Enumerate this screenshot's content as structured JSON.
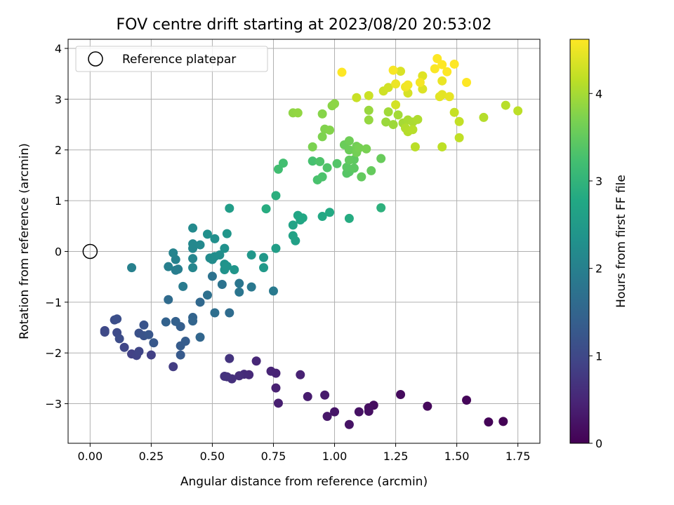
{
  "chart_data": {
    "type": "scatter",
    "title": "FOV centre drift starting at 2023/08/20 20:53:02",
    "xlabel": "Angular distance from reference (arcmin)",
    "ylabel": "Rotation from reference (arcmin)",
    "xlim": [
      -0.09,
      1.84
    ],
    "ylim": [
      -3.78,
      4.18
    ],
    "xticks": [
      0,
      0.25,
      0.5,
      0.75,
      1.0,
      1.25,
      1.5,
      1.75
    ],
    "xtick_labels": [
      "0.00",
      "0.25",
      "0.50",
      "0.75",
      "1.00",
      "1.25",
      "1.50",
      "1.75"
    ],
    "yticks": [
      -3,
      -2,
      -1,
      0,
      1,
      2,
      3,
      4
    ],
    "ytick_labels": [
      "−3",
      "−2",
      "−1",
      "0",
      "1",
      "2",
      "3",
      "4"
    ],
    "grid": true,
    "legend": {
      "location": "upper-left",
      "entries": [
        {
          "label": "Reference platepar",
          "marker": "open-circle"
        }
      ]
    },
    "reference_point": {
      "x": 0.0,
      "y": 0.0
    },
    "colorbar": {
      "label": "Hours from first FF file",
      "colormap": "viridis",
      "range": [
        0,
        4.62
      ],
      "ticks": [
        0,
        1,
        2,
        3,
        4
      ],
      "tick_labels": [
        "0",
        "1",
        "2",
        "3",
        "4"
      ]
    },
    "points": [
      {
        "x": 1.69,
        "y": -3.35,
        "c": 0.02
      },
      {
        "x": 1.63,
        "y": -3.36,
        "c": 0.04
      },
      {
        "x": 1.54,
        "y": -2.93,
        "c": 0.07
      },
      {
        "x": 1.38,
        "y": -3.05,
        "c": 0.1
      },
      {
        "x": 1.27,
        "y": -2.82,
        "c": 0.13
      },
      {
        "x": 1.16,
        "y": -3.03,
        "c": 0.16
      },
      {
        "x": 1.14,
        "y": -3.08,
        "c": 0.18
      },
      {
        "x": 1.14,
        "y": -3.15,
        "c": 0.2
      },
      {
        "x": 1.1,
        "y": -3.16,
        "c": 0.22
      },
      {
        "x": 1.06,
        "y": -3.41,
        "c": 0.24
      },
      {
        "x": 1.0,
        "y": -3.16,
        "c": 0.27
      },
      {
        "x": 0.97,
        "y": -3.25,
        "c": 0.3
      },
      {
        "x": 0.96,
        "y": -2.83,
        "c": 0.33
      },
      {
        "x": 0.89,
        "y": -2.86,
        "c": 0.36
      },
      {
        "x": 0.77,
        "y": -2.99,
        "c": 0.39
      },
      {
        "x": 0.76,
        "y": -2.69,
        "c": 0.42
      },
      {
        "x": 0.86,
        "y": -2.43,
        "c": 0.44
      },
      {
        "x": 0.76,
        "y": -2.4,
        "c": 0.46
      },
      {
        "x": 0.74,
        "y": -2.36,
        "c": 0.48
      },
      {
        "x": 0.68,
        "y": -2.16,
        "c": 0.51
      },
      {
        "x": 0.65,
        "y": -2.43,
        "c": 0.54
      },
      {
        "x": 0.63,
        "y": -2.42,
        "c": 0.57
      },
      {
        "x": 0.61,
        "y": -2.45,
        "c": 0.6
      },
      {
        "x": 0.58,
        "y": -2.51,
        "c": 0.63
      },
      {
        "x": 0.56,
        "y": -2.47,
        "c": 0.66
      },
      {
        "x": 0.55,
        "y": -2.46,
        "c": 0.68
      },
      {
        "x": 0.57,
        "y": -2.11,
        "c": 0.7
      },
      {
        "x": 0.34,
        "y": -2.27,
        "c": 0.82
      },
      {
        "x": 0.25,
        "y": -2.04,
        "c": 0.86
      },
      {
        "x": 0.17,
        "y": -2.02,
        "c": 0.89
      },
      {
        "x": 0.19,
        "y": -2.05,
        "c": 0.92
      },
      {
        "x": 0.2,
        "y": -1.97,
        "c": 0.95
      },
      {
        "x": 0.14,
        "y": -1.89,
        "c": 0.98
      },
      {
        "x": 0.06,
        "y": -1.56,
        "c": 1.0
      },
      {
        "x": 0.06,
        "y": -1.59,
        "c": 1.02
      },
      {
        "x": 0.11,
        "y": -1.6,
        "c": 1.05
      },
      {
        "x": 0.12,
        "y": -1.72,
        "c": 1.08
      },
      {
        "x": 0.1,
        "y": -1.35,
        "c": 1.1
      },
      {
        "x": 0.11,
        "y": -1.33,
        "c": 1.12
      },
      {
        "x": 0.2,
        "y": -1.61,
        "c": 1.15
      },
      {
        "x": 0.22,
        "y": -1.66,
        "c": 1.18
      },
      {
        "x": 0.22,
        "y": -1.45,
        "c": 1.2
      },
      {
        "x": 0.24,
        "y": -1.64,
        "c": 1.23
      },
      {
        "x": 0.26,
        "y": -1.8,
        "c": 1.26
      },
      {
        "x": 0.37,
        "y": -2.04,
        "c": 1.3
      },
      {
        "x": 0.37,
        "y": -1.86,
        "c": 1.33
      },
      {
        "x": 0.39,
        "y": -1.77,
        "c": 1.36
      },
      {
        "x": 0.37,
        "y": -1.48,
        "c": 1.39
      },
      {
        "x": 0.35,
        "y": -1.38,
        "c": 1.42
      },
      {
        "x": 0.31,
        "y": -1.39,
        "c": 1.45
      },
      {
        "x": 0.42,
        "y": -1.3,
        "c": 1.47
      },
      {
        "x": 0.42,
        "y": -1.37,
        "c": 1.49
      },
      {
        "x": 0.45,
        "y": -1.69,
        "c": 1.52
      },
      {
        "x": 0.45,
        "y": -1.0,
        "c": 1.56
      },
      {
        "x": 0.32,
        "y": -0.95,
        "c": 1.6
      },
      {
        "x": 0.57,
        "y": -1.21,
        "c": 1.63
      },
      {
        "x": 0.51,
        "y": -1.21,
        "c": 1.66
      },
      {
        "x": 0.48,
        "y": -0.86,
        "c": 1.7
      },
      {
        "x": 0.5,
        "y": -0.49,
        "c": 1.73
      },
      {
        "x": 0.54,
        "y": -0.65,
        "c": 1.76
      },
      {
        "x": 0.61,
        "y": -0.8,
        "c": 1.79
      },
      {
        "x": 0.61,
        "y": -0.63,
        "c": 1.82
      },
      {
        "x": 0.66,
        "y": -0.7,
        "c": 1.85
      },
      {
        "x": 0.75,
        "y": -0.78,
        "c": 1.88
      },
      {
        "x": 0.38,
        "y": -0.69,
        "c": 1.91
      },
      {
        "x": 0.35,
        "y": -0.37,
        "c": 1.94
      },
      {
        "x": 0.36,
        "y": -0.35,
        "c": 1.96
      },
      {
        "x": 0.32,
        "y": -0.3,
        "c": 1.98
      },
      {
        "x": 0.17,
        "y": -0.32,
        "c": 2.0
      },
      {
        "x": 0.35,
        "y": -0.16,
        "c": 2.02
      },
      {
        "x": 0.34,
        "y": -0.03,
        "c": 2.05
      },
      {
        "x": 0.42,
        "y": -0.14,
        "c": 2.08
      },
      {
        "x": 0.42,
        "y": -0.32,
        "c": 2.1
      },
      {
        "x": 0.42,
        "y": 0.06,
        "c": 2.12
      },
      {
        "x": 0.42,
        "y": 0.15,
        "c": 2.14
      },
      {
        "x": 0.45,
        "y": 0.13,
        "c": 2.16
      },
      {
        "x": 0.42,
        "y": 0.46,
        "c": 2.18
      },
      {
        "x": 0.49,
        "y": -0.13,
        "c": 2.2
      },
      {
        "x": 0.5,
        "y": -0.16,
        "c": 2.22
      },
      {
        "x": 0.51,
        "y": -0.1,
        "c": 2.24
      },
      {
        "x": 0.53,
        "y": -0.07,
        "c": 2.26
      },
      {
        "x": 0.51,
        "y": 0.25,
        "c": 2.28
      },
      {
        "x": 0.48,
        "y": 0.34,
        "c": 2.3
      },
      {
        "x": 0.55,
        "y": 0.06,
        "c": 2.32
      },
      {
        "x": 0.55,
        "y": -0.25,
        "c": 2.34
      },
      {
        "x": 0.55,
        "y": -0.36,
        "c": 2.36
      },
      {
        "x": 0.56,
        "y": -0.29,
        "c": 2.38
      },
      {
        "x": 0.59,
        "y": -0.36,
        "c": 2.4
      },
      {
        "x": 0.56,
        "y": 0.35,
        "c": 2.42
      },
      {
        "x": 0.66,
        "y": -0.07,
        "c": 2.44
      },
      {
        "x": 0.71,
        "y": -0.12,
        "c": 2.46
      },
      {
        "x": 0.71,
        "y": -0.32,
        "c": 2.48
      },
      {
        "x": 0.57,
        "y": 0.85,
        "c": 2.55
      },
      {
        "x": 0.76,
        "y": 0.06,
        "c": 2.58
      },
      {
        "x": 0.84,
        "y": 0.21,
        "c": 2.62
      },
      {
        "x": 0.83,
        "y": 0.31,
        "c": 2.65
      },
      {
        "x": 0.83,
        "y": 0.52,
        "c": 2.68
      },
      {
        "x": 0.86,
        "y": 0.62,
        "c": 2.71
      },
      {
        "x": 0.85,
        "y": 0.71,
        "c": 2.74
      },
      {
        "x": 0.87,
        "y": 0.66,
        "c": 2.76
      },
      {
        "x": 0.95,
        "y": 0.69,
        "c": 2.78
      },
      {
        "x": 0.98,
        "y": 0.77,
        "c": 2.8
      },
      {
        "x": 1.06,
        "y": 0.65,
        "c": 2.83
      },
      {
        "x": 0.72,
        "y": 0.84,
        "c": 2.86
      },
      {
        "x": 0.76,
        "y": 1.1,
        "c": 2.9
      },
      {
        "x": 1.19,
        "y": 0.86,
        "c": 2.93
      },
      {
        "x": 0.77,
        "y": 1.62,
        "c": 3.2
      },
      {
        "x": 0.79,
        "y": 1.74,
        "c": 3.22
      },
      {
        "x": 0.91,
        "y": 1.78,
        "c": 3.25
      },
      {
        "x": 0.93,
        "y": 1.41,
        "c": 3.28
      },
      {
        "x": 0.95,
        "y": 1.47,
        "c": 3.3
      },
      {
        "x": 0.94,
        "y": 1.77,
        "c": 3.32
      },
      {
        "x": 0.97,
        "y": 1.65,
        "c": 3.34
      },
      {
        "x": 1.01,
        "y": 1.73,
        "c": 3.36
      },
      {
        "x": 1.05,
        "y": 1.54,
        "c": 3.38
      },
      {
        "x": 1.06,
        "y": 1.57,
        "c": 3.4
      },
      {
        "x": 1.05,
        "y": 1.66,
        "c": 3.42
      },
      {
        "x": 1.08,
        "y": 1.64,
        "c": 3.44
      },
      {
        "x": 1.08,
        "y": 1.81,
        "c": 3.46
      },
      {
        "x": 1.06,
        "y": 1.8,
        "c": 3.48
      },
      {
        "x": 1.11,
        "y": 1.47,
        "c": 3.5
      },
      {
        "x": 1.15,
        "y": 1.59,
        "c": 3.52
      },
      {
        "x": 1.19,
        "y": 1.83,
        "c": 3.54
      },
      {
        "x": 1.04,
        "y": 2.1,
        "c": 3.56
      },
      {
        "x": 1.06,
        "y": 2.0,
        "c": 3.58
      },
      {
        "x": 1.06,
        "y": 2.18,
        "c": 3.6
      },
      {
        "x": 1.09,
        "y": 2.07,
        "c": 3.62
      },
      {
        "x": 1.09,
        "y": 1.95,
        "c": 3.64
      },
      {
        "x": 1.1,
        "y": 2.04,
        "c": 3.66
      },
      {
        "x": 1.13,
        "y": 2.02,
        "c": 3.68
      },
      {
        "x": 0.91,
        "y": 2.06,
        "c": 3.7
      },
      {
        "x": 0.95,
        "y": 2.26,
        "c": 3.72
      },
      {
        "x": 0.96,
        "y": 2.41,
        "c": 3.74
      },
      {
        "x": 0.98,
        "y": 2.39,
        "c": 3.76
      },
      {
        "x": 0.95,
        "y": 2.71,
        "c": 3.78
      },
      {
        "x": 0.99,
        "y": 2.87,
        "c": 3.8
      },
      {
        "x": 1.0,
        "y": 2.91,
        "c": 3.82
      },
      {
        "x": 0.83,
        "y": 2.73,
        "c": 3.84
      },
      {
        "x": 0.85,
        "y": 2.73,
        "c": 3.86
      },
      {
        "x": 1.14,
        "y": 2.59,
        "c": 3.88
      },
      {
        "x": 1.14,
        "y": 2.78,
        "c": 3.9
      },
      {
        "x": 1.21,
        "y": 2.55,
        "c": 3.92
      },
      {
        "x": 1.24,
        "y": 2.5,
        "c": 3.94
      },
      {
        "x": 1.22,
        "y": 2.75,
        "c": 3.96
      },
      {
        "x": 1.26,
        "y": 2.69,
        "c": 3.98
      },
      {
        "x": 1.28,
        "y": 2.53,
        "c": 4.0
      },
      {
        "x": 1.3,
        "y": 2.59,
        "c": 4.02
      },
      {
        "x": 1.32,
        "y": 2.55,
        "c": 4.04
      },
      {
        "x": 1.34,
        "y": 2.6,
        "c": 4.06
      },
      {
        "x": 1.29,
        "y": 2.43,
        "c": 4.08
      },
      {
        "x": 1.3,
        "y": 2.36,
        "c": 4.1
      },
      {
        "x": 1.32,
        "y": 2.4,
        "c": 4.12
      },
      {
        "x": 1.33,
        "y": 2.06,
        "c": 4.14
      },
      {
        "x": 1.44,
        "y": 2.06,
        "c": 4.16
      },
      {
        "x": 1.51,
        "y": 2.24,
        "c": 4.18
      },
      {
        "x": 1.51,
        "y": 2.56,
        "c": 4.2
      },
      {
        "x": 1.49,
        "y": 2.74,
        "c": 4.22
      },
      {
        "x": 1.09,
        "y": 3.03,
        "c": 4.24
      },
      {
        "x": 1.14,
        "y": 3.07,
        "c": 4.26
      },
      {
        "x": 1.2,
        "y": 3.16,
        "c": 4.28
      },
      {
        "x": 1.22,
        "y": 3.23,
        "c": 4.3
      },
      {
        "x": 1.25,
        "y": 2.89,
        "c": 4.32
      },
      {
        "x": 1.3,
        "y": 3.12,
        "c": 4.34
      },
      {
        "x": 1.27,
        "y": 3.55,
        "c": 4.36
      },
      {
        "x": 1.36,
        "y": 3.2,
        "c": 4.38
      },
      {
        "x": 1.36,
        "y": 3.46,
        "c": 4.4
      },
      {
        "x": 1.43,
        "y": 3.05,
        "c": 4.42
      },
      {
        "x": 1.44,
        "y": 3.09,
        "c": 4.44
      },
      {
        "x": 1.47,
        "y": 3.05,
        "c": 4.46
      },
      {
        "x": 1.44,
        "y": 3.36,
        "c": 4.48
      },
      {
        "x": 1.25,
        "y": 3.3,
        "c": 4.5
      },
      {
        "x": 1.29,
        "y": 3.24,
        "c": 4.52
      },
      {
        "x": 1.3,
        "y": 3.28,
        "c": 4.54
      },
      {
        "x": 1.35,
        "y": 3.33,
        "c": 4.56
      },
      {
        "x": 1.24,
        "y": 3.57,
        "c": 4.58
      },
      {
        "x": 1.41,
        "y": 3.6,
        "c": 4.6
      },
      {
        "x": 1.42,
        "y": 3.8,
        "c": 4.61
      },
      {
        "x": 1.44,
        "y": 3.68,
        "c": 4.62
      },
      {
        "x": 1.46,
        "y": 3.54,
        "c": 4.62
      },
      {
        "x": 1.49,
        "y": 3.69,
        "c": 4.62
      },
      {
        "x": 1.54,
        "y": 3.33,
        "c": 4.62
      },
      {
        "x": 1.03,
        "y": 3.53,
        "c": 4.62
      },
      {
        "x": 1.61,
        "y": 2.64,
        "c": 4.1
      },
      {
        "x": 1.7,
        "y": 2.88,
        "c": 4.12
      },
      {
        "x": 1.75,
        "y": 2.77,
        "c": 4.15
      }
    ]
  }
}
